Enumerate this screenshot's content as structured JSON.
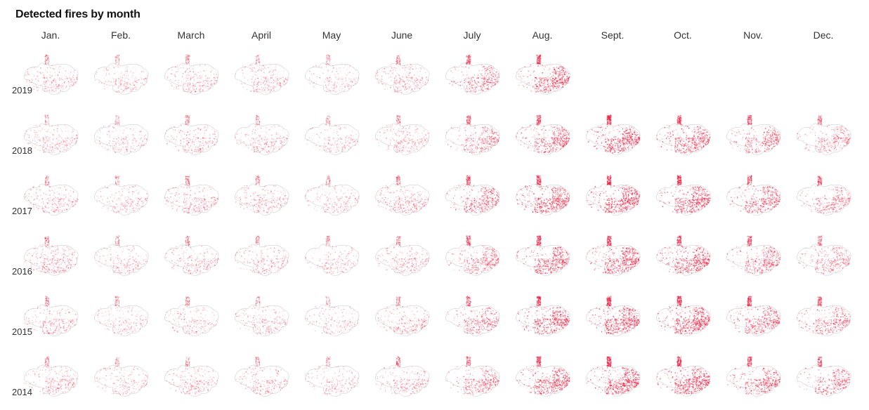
{
  "title": "Detected fires by month",
  "months": [
    "Jan.",
    "Feb.",
    "March",
    "April",
    "May",
    "June",
    "July",
    "Aug.",
    "Sept.",
    "Oct.",
    "Nov.",
    "Dec."
  ],
  "years": [
    "2019",
    "2018",
    "2017",
    "2016",
    "2015",
    "2014"
  ],
  "colors": {
    "fire": "#e8193c",
    "outline": "#cfcfcf"
  },
  "fire_intensity": [
    [
      0.28,
      0.22,
      0.3,
      0.26,
      0.2,
      0.32,
      0.55,
      0.8,
      null,
      null,
      null,
      null
    ],
    [
      0.26,
      0.2,
      0.3,
      0.26,
      0.18,
      0.32,
      0.52,
      0.72,
      0.88,
      0.78,
      0.6,
      0.42
    ],
    [
      0.28,
      0.22,
      0.34,
      0.3,
      0.22,
      0.38,
      0.66,
      0.84,
      0.92,
      0.86,
      0.68,
      0.52
    ],
    [
      0.4,
      0.24,
      0.3,
      0.28,
      0.2,
      0.34,
      0.58,
      0.8,
      0.88,
      0.82,
      0.62,
      0.46
    ],
    [
      0.32,
      0.22,
      0.26,
      0.24,
      0.18,
      0.32,
      0.52,
      0.8,
      0.9,
      0.92,
      0.7,
      0.58
    ],
    [
      0.3,
      0.2,
      0.26,
      0.26,
      0.2,
      0.34,
      0.54,
      0.8,
      0.9,
      0.86,
      0.7,
      0.54
    ]
  ]
}
